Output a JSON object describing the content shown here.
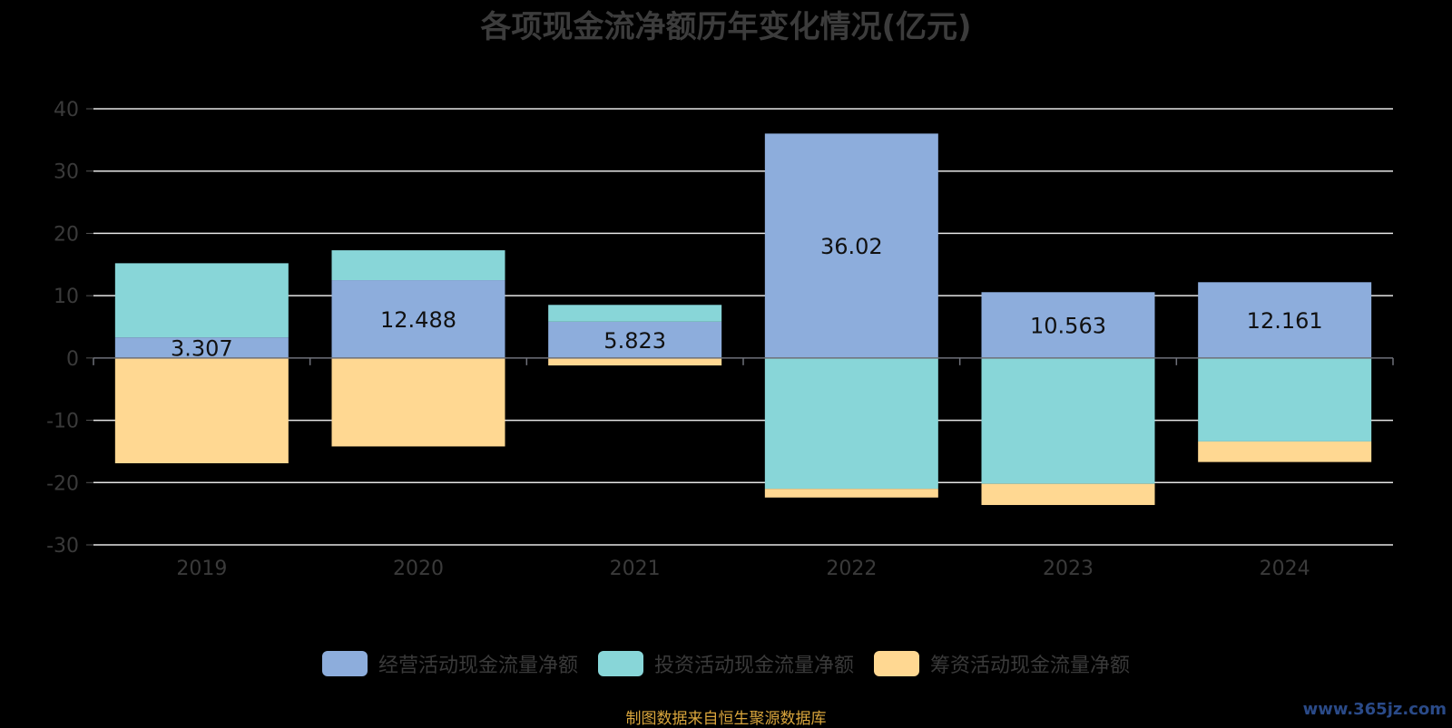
{
  "chart_data": {
    "type": "bar",
    "stacked": true,
    "title": "各项现金流净额历年变化情况(亿元)",
    "categories": [
      "2019",
      "2020",
      "2021",
      "2022",
      "2023",
      "2024"
    ],
    "series": [
      {
        "name": "经营活动现金流量净额",
        "color": "#8daddc",
        "values": [
          3.307,
          12.488,
          5.823,
          36.02,
          10.563,
          12.161
        ],
        "show_labels": true
      },
      {
        "name": "投资活动现金流量净额",
        "color": "#88d6d8",
        "values": [
          11.9,
          4.8,
          2.7,
          -21.0,
          -20.2,
          -13.4
        ],
        "show_labels": false
      },
      {
        "name": "筹资活动现金流量净额",
        "color": "#ffd892",
        "values": [
          -16.9,
          -14.2,
          -1.2,
          -1.4,
          -3.4,
          -3.3
        ],
        "show_labels": false
      }
    ],
    "ylim": [
      -30,
      40
    ],
    "yticks": [
      40,
      30,
      20,
      10,
      0,
      -10,
      -20,
      -30
    ],
    "grid": true,
    "legend_position": "bottom",
    "xlabel": "",
    "ylabel": ""
  },
  "footer": {
    "source_note": "制图数据来自恒生聚源数据库",
    "watermark": "www.365jz.com"
  }
}
